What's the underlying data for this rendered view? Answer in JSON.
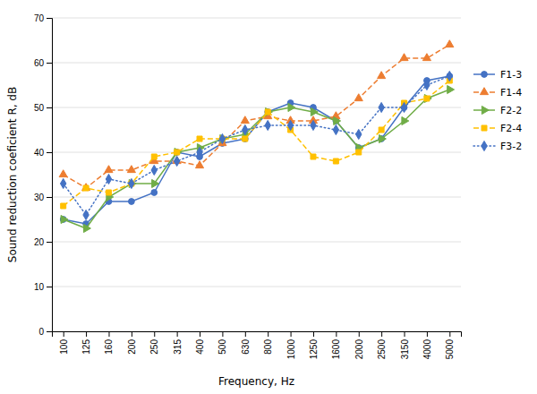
{
  "chart_data": {
    "type": "line",
    "xlabel": "Frequency, Hz",
    "ylabel": "Sound reduction coeficient R, dB",
    "categories": [
      "100",
      "125",
      "160",
      "200",
      "250",
      "315",
      "400",
      "500",
      "630",
      "800",
      "1000",
      "1250",
      "1600",
      "2000",
      "2500",
      "3150",
      "4000",
      "5000"
    ],
    "series": [
      {
        "name": "F1-3",
        "color": "#4472c4",
        "line_style": "solid",
        "marker": "circle",
        "values": [
          25,
          24,
          29,
          29,
          31,
          40,
          39,
          42,
          43,
          49,
          51,
          50,
          47,
          41,
          43,
          50,
          56,
          57
        ]
      },
      {
        "name": "F1-4",
        "color": "#ed7d31",
        "line_style": "dashed",
        "marker": "triangle-up",
        "values": [
          35,
          32,
          36,
          36,
          38,
          38,
          37,
          42,
          47,
          48,
          47,
          47,
          48,
          52,
          57,
          61,
          61,
          64
        ]
      },
      {
        "name": "F2-2",
        "color": "#70ad47",
        "line_style": "solid",
        "marker": "triangle-right",
        "values": [
          25,
          23,
          30,
          33,
          33,
          40,
          41,
          43,
          44,
          49,
          50,
          49,
          47,
          41,
          43,
          47,
          52,
          54
        ]
      },
      {
        "name": "F2-4",
        "color": "#ffc000",
        "line_style": "dashed",
        "marker": "square",
        "values": [
          28,
          32,
          31,
          33,
          39,
          40,
          43,
          43,
          43,
          49,
          45,
          39,
          38,
          40,
          45,
          51,
          52,
          56
        ]
      },
      {
        "name": "F3-2",
        "color": "#4472c4",
        "line_style": "dotted",
        "marker": "diamond",
        "values": [
          33,
          26,
          34,
          33,
          36,
          38,
          40,
          43,
          45,
          46,
          46,
          46,
          45,
          44,
          50,
          50,
          55,
          57
        ]
      }
    ],
    "ylim": [
      0,
      70
    ],
    "yticks": [
      0,
      10,
      20,
      30,
      40,
      50,
      60,
      70
    ],
    "grid": true,
    "legend": "right"
  }
}
